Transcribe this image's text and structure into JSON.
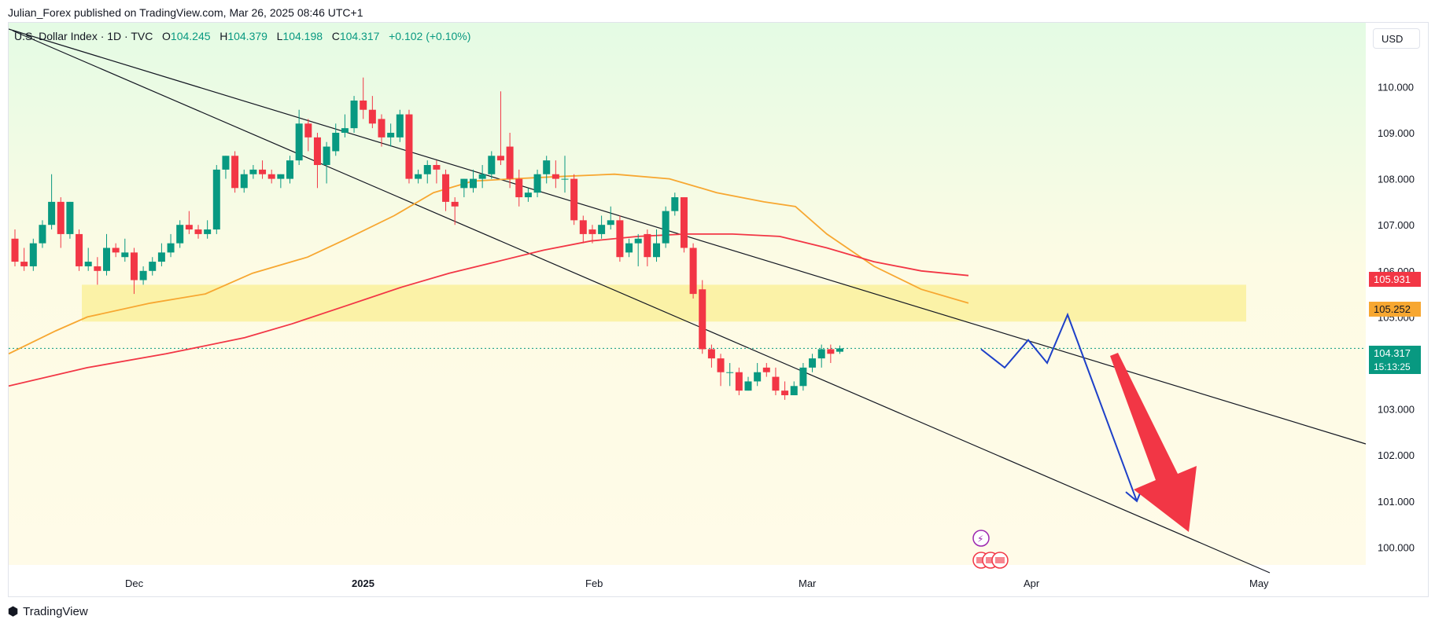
{
  "header": {
    "published_by": "Julian_Forex published on TradingView.com, Mar 26, 2025 08:46 UTC+1"
  },
  "symbol": {
    "name": "U.S. Dollar Index · 1D · TVC",
    "o_label": "O",
    "o": "104.245",
    "h_label": "H",
    "h": "104.379",
    "l_label": "L",
    "l": "104.198",
    "c_label": "C",
    "c": "104.317",
    "change": "+0.102 (+0.10%)"
  },
  "currency": "USD",
  "footer": {
    "brand": "TradingView"
  },
  "colors": {
    "up": "#089981",
    "down": "#f23645",
    "ma_fast": "#f7a731",
    "ma_slow": "#f23645",
    "zone": "#fbf1a0",
    "projection": "#1e40c8",
    "arrow": "#f23645"
  },
  "price_tags": {
    "ma_slow": "105.931",
    "ma_fast": "105.252",
    "last": "104.317",
    "countdown": "15:13:25"
  },
  "chart_data": {
    "type": "candlestick",
    "ylim": [
      99.5,
      111.5
    ],
    "y_ticks": [
      "110.000",
      "109.000",
      "108.000",
      "107.000",
      "106.000",
      "105.000",
      "104.000",
      "103.000",
      "102.000",
      "101.000",
      "100.000"
    ],
    "x_ticks": [
      "Dec",
      "2025",
      "Feb",
      "Mar",
      "Apr",
      "May"
    ],
    "candles": [
      {
        "o": 106.7,
        "h": 106.9,
        "l": 106.1,
        "c": 106.2
      },
      {
        "o": 106.2,
        "h": 106.5,
        "l": 106.0,
        "c": 106.1
      },
      {
        "o": 106.1,
        "h": 106.7,
        "l": 106.0,
        "c": 106.6
      },
      {
        "o": 106.6,
        "h": 107.1,
        "l": 106.5,
        "c": 107.0
      },
      {
        "o": 107.0,
        "h": 108.1,
        "l": 106.9,
        "c": 107.5
      },
      {
        "o": 107.5,
        "h": 107.6,
        "l": 106.5,
        "c": 106.8
      },
      {
        "o": 106.8,
        "h": 107.5,
        "l": 106.7,
        "c": 107.5
      },
      {
        "o": 106.8,
        "h": 106.9,
        "l": 106.0,
        "c": 106.1
      },
      {
        "o": 106.1,
        "h": 106.5,
        "l": 106.0,
        "c": 106.2
      },
      {
        "o": 106.1,
        "h": 106.3,
        "l": 105.7,
        "c": 106.0
      },
      {
        "o": 106.0,
        "h": 106.8,
        "l": 105.9,
        "c": 106.5
      },
      {
        "o": 106.5,
        "h": 106.6,
        "l": 106.3,
        "c": 106.4
      },
      {
        "o": 106.3,
        "h": 106.7,
        "l": 106.2,
        "c": 106.4
      },
      {
        "o": 106.4,
        "h": 106.5,
        "l": 105.5,
        "c": 105.8
      },
      {
        "o": 105.8,
        "h": 106.1,
        "l": 105.7,
        "c": 106.0
      },
      {
        "o": 106.0,
        "h": 106.3,
        "l": 105.9,
        "c": 106.2
      },
      {
        "o": 106.2,
        "h": 106.6,
        "l": 106.1,
        "c": 106.4
      },
      {
        "o": 106.4,
        "h": 106.8,
        "l": 106.3,
        "c": 106.6
      },
      {
        "o": 106.6,
        "h": 107.1,
        "l": 106.5,
        "c": 107.0
      },
      {
        "o": 107.0,
        "h": 107.3,
        "l": 106.8,
        "c": 106.9
      },
      {
        "o": 106.9,
        "h": 107.0,
        "l": 106.7,
        "c": 106.8
      },
      {
        "o": 106.8,
        "h": 107.1,
        "l": 106.7,
        "c": 106.9
      },
      {
        "o": 106.9,
        "h": 108.3,
        "l": 106.8,
        "c": 108.2
      },
      {
        "o": 108.2,
        "h": 108.5,
        "l": 108.0,
        "c": 108.5
      },
      {
        "o": 108.5,
        "h": 108.6,
        "l": 107.7,
        "c": 107.8
      },
      {
        "o": 107.8,
        "h": 108.2,
        "l": 107.7,
        "c": 108.1
      },
      {
        "o": 108.1,
        "h": 108.3,
        "l": 108.0,
        "c": 108.2
      },
      {
        "o": 108.2,
        "h": 108.4,
        "l": 108.0,
        "c": 108.1
      },
      {
        "o": 108.1,
        "h": 108.2,
        "l": 107.9,
        "c": 108.0
      },
      {
        "o": 108.0,
        "h": 108.1,
        "l": 107.8,
        "c": 108.1
      },
      {
        "o": 108.0,
        "h": 108.5,
        "l": 107.9,
        "c": 108.4
      },
      {
        "o": 108.4,
        "h": 109.5,
        "l": 108.3,
        "c": 109.2
      },
      {
        "o": 109.2,
        "h": 109.3,
        "l": 108.6,
        "c": 108.9
      },
      {
        "o": 108.9,
        "h": 109.0,
        "l": 107.8,
        "c": 108.3
      },
      {
        "o": 108.3,
        "h": 108.8,
        "l": 107.9,
        "c": 108.7
      },
      {
        "o": 108.6,
        "h": 109.2,
        "l": 108.5,
        "c": 109.0
      },
      {
        "o": 109.0,
        "h": 109.4,
        "l": 108.9,
        "c": 109.1
      },
      {
        "o": 109.1,
        "h": 109.8,
        "l": 109.0,
        "c": 109.7
      },
      {
        "o": 109.7,
        "h": 110.2,
        "l": 109.3,
        "c": 109.5
      },
      {
        "o": 109.5,
        "h": 109.8,
        "l": 109.1,
        "c": 109.2
      },
      {
        "o": 109.3,
        "h": 109.4,
        "l": 108.7,
        "c": 108.9
      },
      {
        "o": 108.9,
        "h": 109.2,
        "l": 108.7,
        "c": 109.0
      },
      {
        "o": 108.9,
        "h": 109.5,
        "l": 108.8,
        "c": 109.4
      },
      {
        "o": 109.4,
        "h": 109.5,
        "l": 107.9,
        "c": 108.0
      },
      {
        "o": 108.0,
        "h": 108.2,
        "l": 107.9,
        "c": 108.1
      },
      {
        "o": 108.1,
        "h": 108.4,
        "l": 107.9,
        "c": 108.3
      },
      {
        "o": 108.3,
        "h": 108.4,
        "l": 107.9,
        "c": 108.2
      },
      {
        "o": 108.1,
        "h": 108.2,
        "l": 107.3,
        "c": 107.5
      },
      {
        "o": 107.5,
        "h": 107.6,
        "l": 107.0,
        "c": 107.4
      },
      {
        "o": 107.8,
        "h": 108.0,
        "l": 107.6,
        "c": 108.0
      },
      {
        "o": 107.8,
        "h": 108.2,
        "l": 107.7,
        "c": 108.0
      },
      {
        "o": 108.0,
        "h": 108.3,
        "l": 107.8,
        "c": 108.1
      },
      {
        "o": 108.1,
        "h": 108.6,
        "l": 108.0,
        "c": 108.5
      },
      {
        "o": 108.5,
        "h": 109.9,
        "l": 108.3,
        "c": 108.4
      },
      {
        "o": 108.7,
        "h": 109.0,
        "l": 107.8,
        "c": 108.0
      },
      {
        "o": 108.0,
        "h": 108.2,
        "l": 107.4,
        "c": 107.6
      },
      {
        "o": 107.6,
        "h": 107.8,
        "l": 107.5,
        "c": 107.7
      },
      {
        "o": 107.7,
        "h": 108.2,
        "l": 107.6,
        "c": 108.1
      },
      {
        "o": 108.1,
        "h": 108.5,
        "l": 107.9,
        "c": 108.4
      },
      {
        "o": 108.1,
        "h": 108.4,
        "l": 107.8,
        "c": 108.0
      },
      {
        "o": 108.0,
        "h": 108.5,
        "l": 107.7,
        "c": 108.0
      },
      {
        "o": 108.0,
        "h": 108.1,
        "l": 107.0,
        "c": 107.1
      },
      {
        "o": 107.1,
        "h": 107.2,
        "l": 106.6,
        "c": 106.8
      },
      {
        "o": 106.9,
        "h": 107.0,
        "l": 106.6,
        "c": 106.8
      },
      {
        "o": 106.8,
        "h": 107.2,
        "l": 106.7,
        "c": 107.0
      },
      {
        "o": 107.0,
        "h": 107.4,
        "l": 106.9,
        "c": 107.1
      },
      {
        "o": 107.1,
        "h": 107.2,
        "l": 106.2,
        "c": 106.3
      },
      {
        "o": 106.4,
        "h": 106.7,
        "l": 106.3,
        "c": 106.6
      },
      {
        "o": 106.6,
        "h": 106.8,
        "l": 106.1,
        "c": 106.7
      },
      {
        "o": 106.8,
        "h": 106.9,
        "l": 106.1,
        "c": 106.3
      },
      {
        "o": 106.3,
        "h": 106.9,
        "l": 106.2,
        "c": 106.6
      },
      {
        "o": 106.6,
        "h": 107.4,
        "l": 106.5,
        "c": 107.3
      },
      {
        "o": 107.3,
        "h": 107.7,
        "l": 107.2,
        "c": 107.6
      },
      {
        "o": 107.6,
        "h": 107.6,
        "l": 106.4,
        "c": 106.5
      },
      {
        "o": 106.5,
        "h": 106.6,
        "l": 105.4,
        "c": 105.5
      },
      {
        "o": 105.6,
        "h": 105.8,
        "l": 104.2,
        "c": 104.3
      },
      {
        "o": 104.3,
        "h": 104.4,
        "l": 103.9,
        "c": 104.1
      },
      {
        "o": 104.1,
        "h": 104.2,
        "l": 103.5,
        "c": 103.8
      },
      {
        "o": 103.8,
        "h": 104.0,
        "l": 103.5,
        "c": 103.8
      },
      {
        "o": 103.8,
        "h": 103.9,
        "l": 103.3,
        "c": 103.4
      },
      {
        "o": 103.4,
        "h": 103.7,
        "l": 103.4,
        "c": 103.6
      },
      {
        "o": 103.6,
        "h": 104.0,
        "l": 103.5,
        "c": 103.8
      },
      {
        "o": 103.9,
        "h": 104.0,
        "l": 103.7,
        "c": 103.8
      },
      {
        "o": 103.7,
        "h": 103.9,
        "l": 103.3,
        "c": 103.4
      },
      {
        "o": 103.4,
        "h": 103.6,
        "l": 103.2,
        "c": 103.3
      },
      {
        "o": 103.3,
        "h": 103.6,
        "l": 103.3,
        "c": 103.5
      },
      {
        "o": 103.5,
        "h": 104.0,
        "l": 103.4,
        "c": 103.9
      },
      {
        "o": 103.9,
        "h": 104.2,
        "l": 103.8,
        "c": 104.1
      },
      {
        "o": 104.1,
        "h": 104.4,
        "l": 103.9,
        "c": 104.3
      },
      {
        "o": 104.3,
        "h": 104.4,
        "l": 104.0,
        "c": 104.2
      },
      {
        "o": 104.245,
        "h": 104.379,
        "l": 104.198,
        "c": 104.317
      }
    ]
  }
}
